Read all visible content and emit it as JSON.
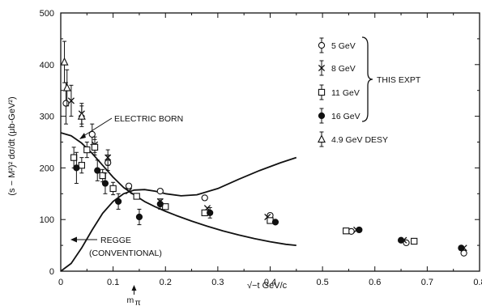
{
  "chart_data": {
    "type": "scatter",
    "xlabel": "√−t   GeV/c",
    "ylabel": "(s − M²)²  dσ/dt   (μb-GeV²)",
    "xlim": [
      0,
      0.8
    ],
    "ylim": [
      0,
      500
    ],
    "xticks": [
      0,
      0.1,
      0.2,
      0.3,
      0.4,
      0.5,
      0.6,
      0.7,
      0.8
    ],
    "yticks": [
      0,
      100,
      200,
      300,
      400,
      500
    ],
    "xtick_labels": [
      "0",
      "0.1",
      "0.2",
      "0.3",
      "0.4",
      "0.5",
      "0.6",
      "0.7",
      "0.8"
    ],
    "ytick_labels": [
      "0",
      "100",
      "200",
      "300",
      "400",
      "500"
    ],
    "grid": false,
    "legend_bracket_label": "THIS EXPT",
    "annotations": {
      "electric_born": "ELECTRIC BORN",
      "regge_line1": "REGGE",
      "regge_line2": "(CONVENTIONAL)",
      "m_pi_main": "m",
      "m_pi_sub": "π",
      "m_pi_x": 0.14
    },
    "series": [
      {
        "name": "5 GeV",
        "marker": "circle-open",
        "points": [
          {
            "x": 0.01,
            "y": 325,
            "err": 40
          },
          {
            "x": 0.06,
            "y": 265,
            "err": 20
          },
          {
            "x": 0.09,
            "y": 210,
            "err": 15
          },
          {
            "x": 0.13,
            "y": 165
          },
          {
            "x": 0.19,
            "y": 155
          },
          {
            "x": 0.275,
            "y": 142
          },
          {
            "x": 0.4,
            "y": 108
          },
          {
            "x": 0.555,
            "y": 77
          },
          {
            "x": 0.66,
            "y": 55
          },
          {
            "x": 0.77,
            "y": 35
          }
        ]
      },
      {
        "name": "8 GeV",
        "marker": "cross",
        "points": [
          {
            "x": 0.02,
            "y": 330,
            "err": 30
          },
          {
            "x": 0.04,
            "y": 305,
            "err": 20
          },
          {
            "x": 0.065,
            "y": 245,
            "err": 15
          },
          {
            "x": 0.09,
            "y": 220,
            "err": 15
          },
          {
            "x": 0.13,
            "y": 155
          },
          {
            "x": 0.19,
            "y": 135
          },
          {
            "x": 0.28,
            "y": 122
          },
          {
            "x": 0.395,
            "y": 105
          },
          {
            "x": 0.565,
            "y": 80
          },
          {
            "x": 0.655,
            "y": 60
          },
          {
            "x": 0.77,
            "y": 45
          }
        ]
      },
      {
        "name": "11 GeV",
        "marker": "square-open",
        "points": [
          {
            "x": 0.025,
            "y": 220,
            "err": 20
          },
          {
            "x": 0.04,
            "y": 205,
            "err": 15
          },
          {
            "x": 0.05,
            "y": 235,
            "err": 15
          },
          {
            "x": 0.065,
            "y": 240,
            "err": 15
          },
          {
            "x": 0.08,
            "y": 185,
            "err": 12
          },
          {
            "x": 0.1,
            "y": 160,
            "err": 12
          },
          {
            "x": 0.145,
            "y": 145
          },
          {
            "x": 0.2,
            "y": 125
          },
          {
            "x": 0.275,
            "y": 113
          },
          {
            "x": 0.4,
            "y": 98
          },
          {
            "x": 0.545,
            "y": 78
          },
          {
            "x": 0.675,
            "y": 58
          }
        ]
      },
      {
        "name": "16 GeV",
        "marker": "circle-filled",
        "points": [
          {
            "x": 0.03,
            "y": 200,
            "err": 30
          },
          {
            "x": 0.07,
            "y": 195,
            "err": 20
          },
          {
            "x": 0.085,
            "y": 170,
            "err": 20
          },
          {
            "x": 0.11,
            "y": 135,
            "err": 15
          },
          {
            "x": 0.15,
            "y": 105,
            "err": 15
          },
          {
            "x": 0.19,
            "y": 130,
            "err": 10
          },
          {
            "x": 0.285,
            "y": 113,
            "err": 10
          },
          {
            "x": 0.41,
            "y": 95
          },
          {
            "x": 0.57,
            "y": 80
          },
          {
            "x": 0.65,
            "y": 60
          },
          {
            "x": 0.765,
            "y": 45
          }
        ]
      },
      {
        "name": "4.9 GeV DESY",
        "marker": "triangle-open",
        "points": [
          {
            "x": 0.007,
            "y": 405,
            "err": 40
          },
          {
            "x": 0.012,
            "y": 355,
            "err": 35
          },
          {
            "x": 0.04,
            "y": 300,
            "err": 20
          }
        ]
      }
    ],
    "curves": [
      {
        "name": "ELECTRIC BORN",
        "x": [
          0,
          0.02,
          0.04,
          0.06,
          0.08,
          0.1,
          0.12,
          0.14,
          0.16,
          0.18,
          0.2,
          0.22,
          0.25,
          0.28,
          0.31,
          0.34,
          0.37,
          0.4,
          0.43,
          0.45
        ],
        "y": [
          268,
          262,
          248,
          228,
          205,
          182,
          162,
          148,
          135,
          125,
          116,
          108,
          97,
          87,
          78,
          70,
          63,
          57,
          52,
          50
        ]
      },
      {
        "name": "REGGE (CONVENTIONAL)",
        "x": [
          0,
          0.02,
          0.04,
          0.06,
          0.08,
          0.1,
          0.12,
          0.14,
          0.16,
          0.18,
          0.2,
          0.23,
          0.26,
          0.3,
          0.34,
          0.38,
          0.42,
          0.45
        ],
        "y": [
          0,
          15,
          45,
          80,
          112,
          135,
          150,
          157,
          158,
          155,
          150,
          146,
          148,
          160,
          178,
          195,
          210,
          220
        ]
      }
    ]
  }
}
